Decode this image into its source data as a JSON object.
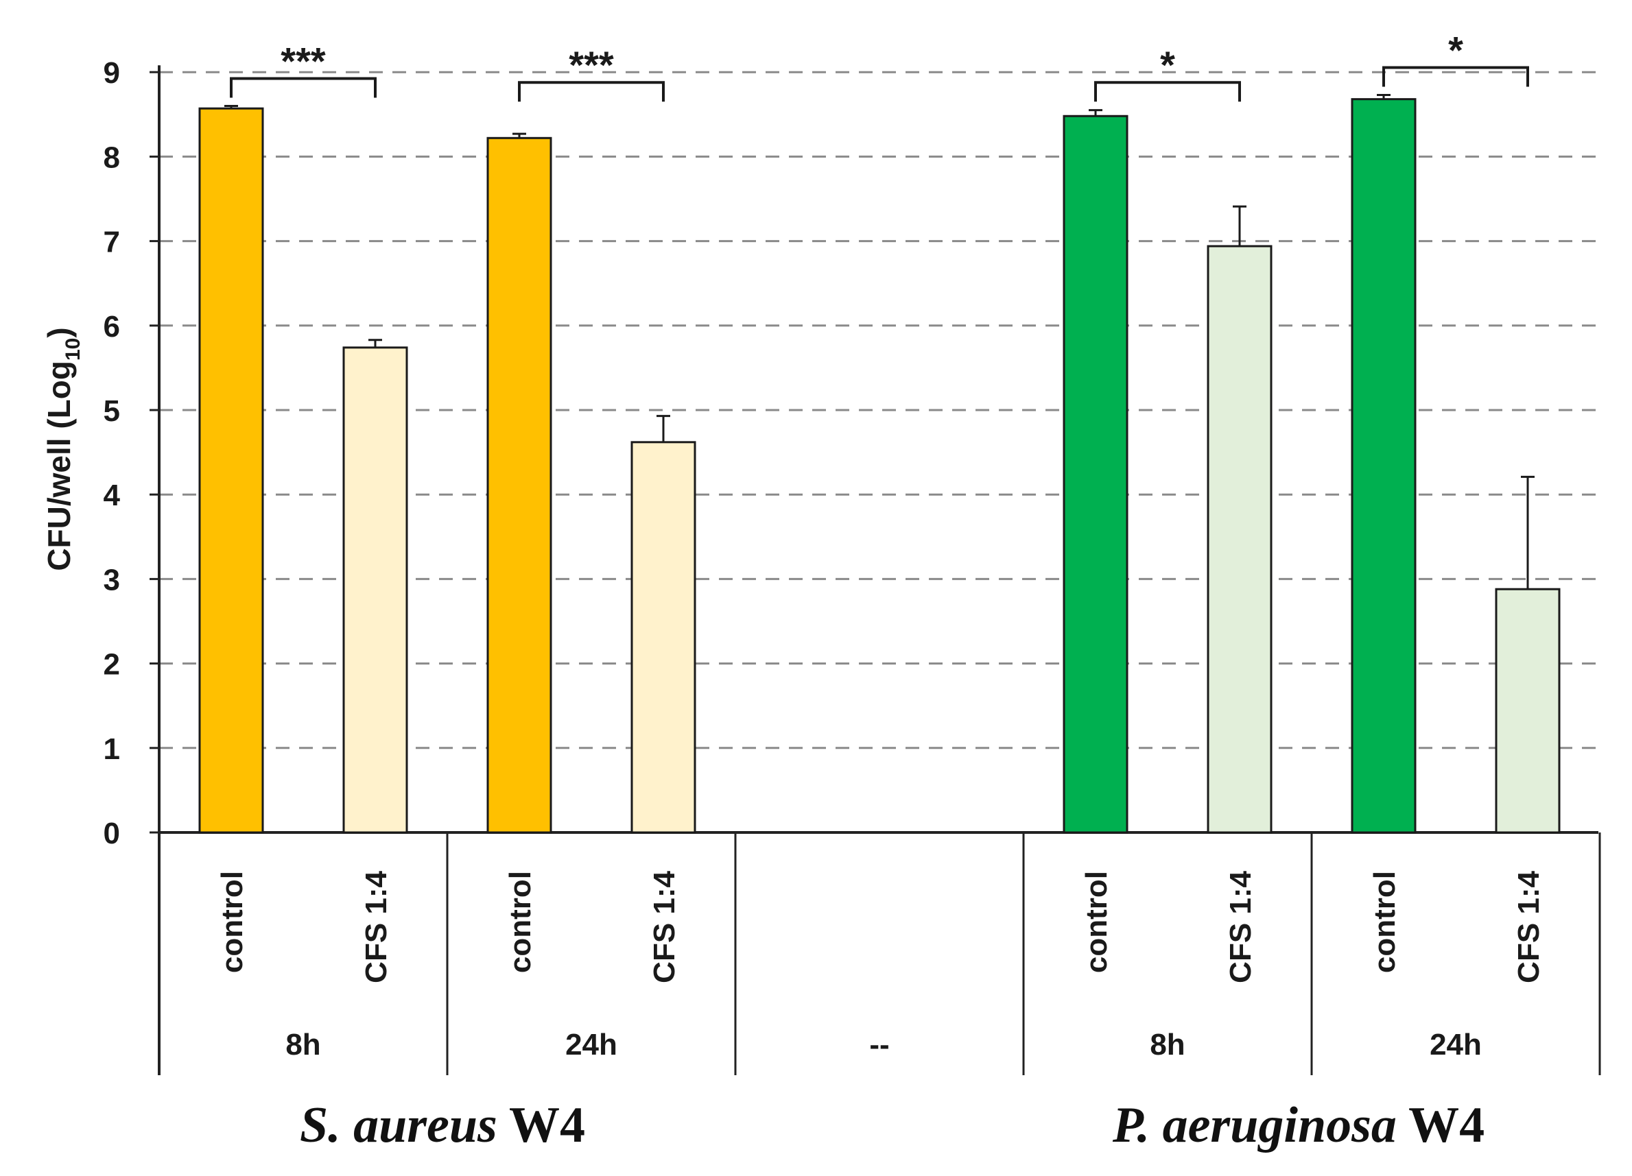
{
  "chart_data": {
    "type": "bar",
    "ylabel_main": "CFU/well (Log",
    "ylabel_sub": "10",
    "ylabel_close": ")",
    "ylim": [
      0,
      9
    ],
    "yticks": [
      "0",
      "1",
      "2",
      "3",
      "4",
      "5",
      "6",
      "7",
      "8",
      "9"
    ],
    "grid": "dashed horizontal",
    "groups": [
      {
        "species_italic": "S. aureus",
        "species_rest": " W4",
        "timepoints": [
          {
            "time": "8h",
            "significance": "***",
            "bars": [
              {
                "label": "control",
                "value": 8.57,
                "error": 0.03,
                "color": "#FFC000"
              },
              {
                "label": "CFS 1:4",
                "value": 5.74,
                "error": 0.09,
                "color": "#FFF2CC"
              }
            ]
          },
          {
            "time": "24h",
            "significance": "***",
            "bars": [
              {
                "label": "control",
                "value": 8.22,
                "error": 0.05,
                "color": "#FFC000"
              },
              {
                "label": "CFS 1:4",
                "value": 4.62,
                "error": 0.31,
                "color": "#FFF2CC"
              }
            ]
          }
        ]
      },
      {
        "species_italic": "P. aeruginosa",
        "species_rest": " W4",
        "timepoints": [
          {
            "time": "8h",
            "significance": "*",
            "bars": [
              {
                "label": "control",
                "value": 8.48,
                "error": 0.07,
                "color": "#00B050"
              },
              {
                "label": "CFS 1:4",
                "value": 6.94,
                "error": 0.47,
                "color": "#E2EFDA"
              }
            ]
          },
          {
            "time": "24h",
            "significance": "*",
            "bars": [
              {
                "label": "control",
                "value": 8.68,
                "error": 0.05,
                "color": "#00B050"
              },
              {
                "label": "CFS 1:4",
                "value": 2.88,
                "error": 1.33,
                "color": "#E2EFDA"
              }
            ]
          }
        ]
      }
    ],
    "blank_slot_label": "--"
  }
}
